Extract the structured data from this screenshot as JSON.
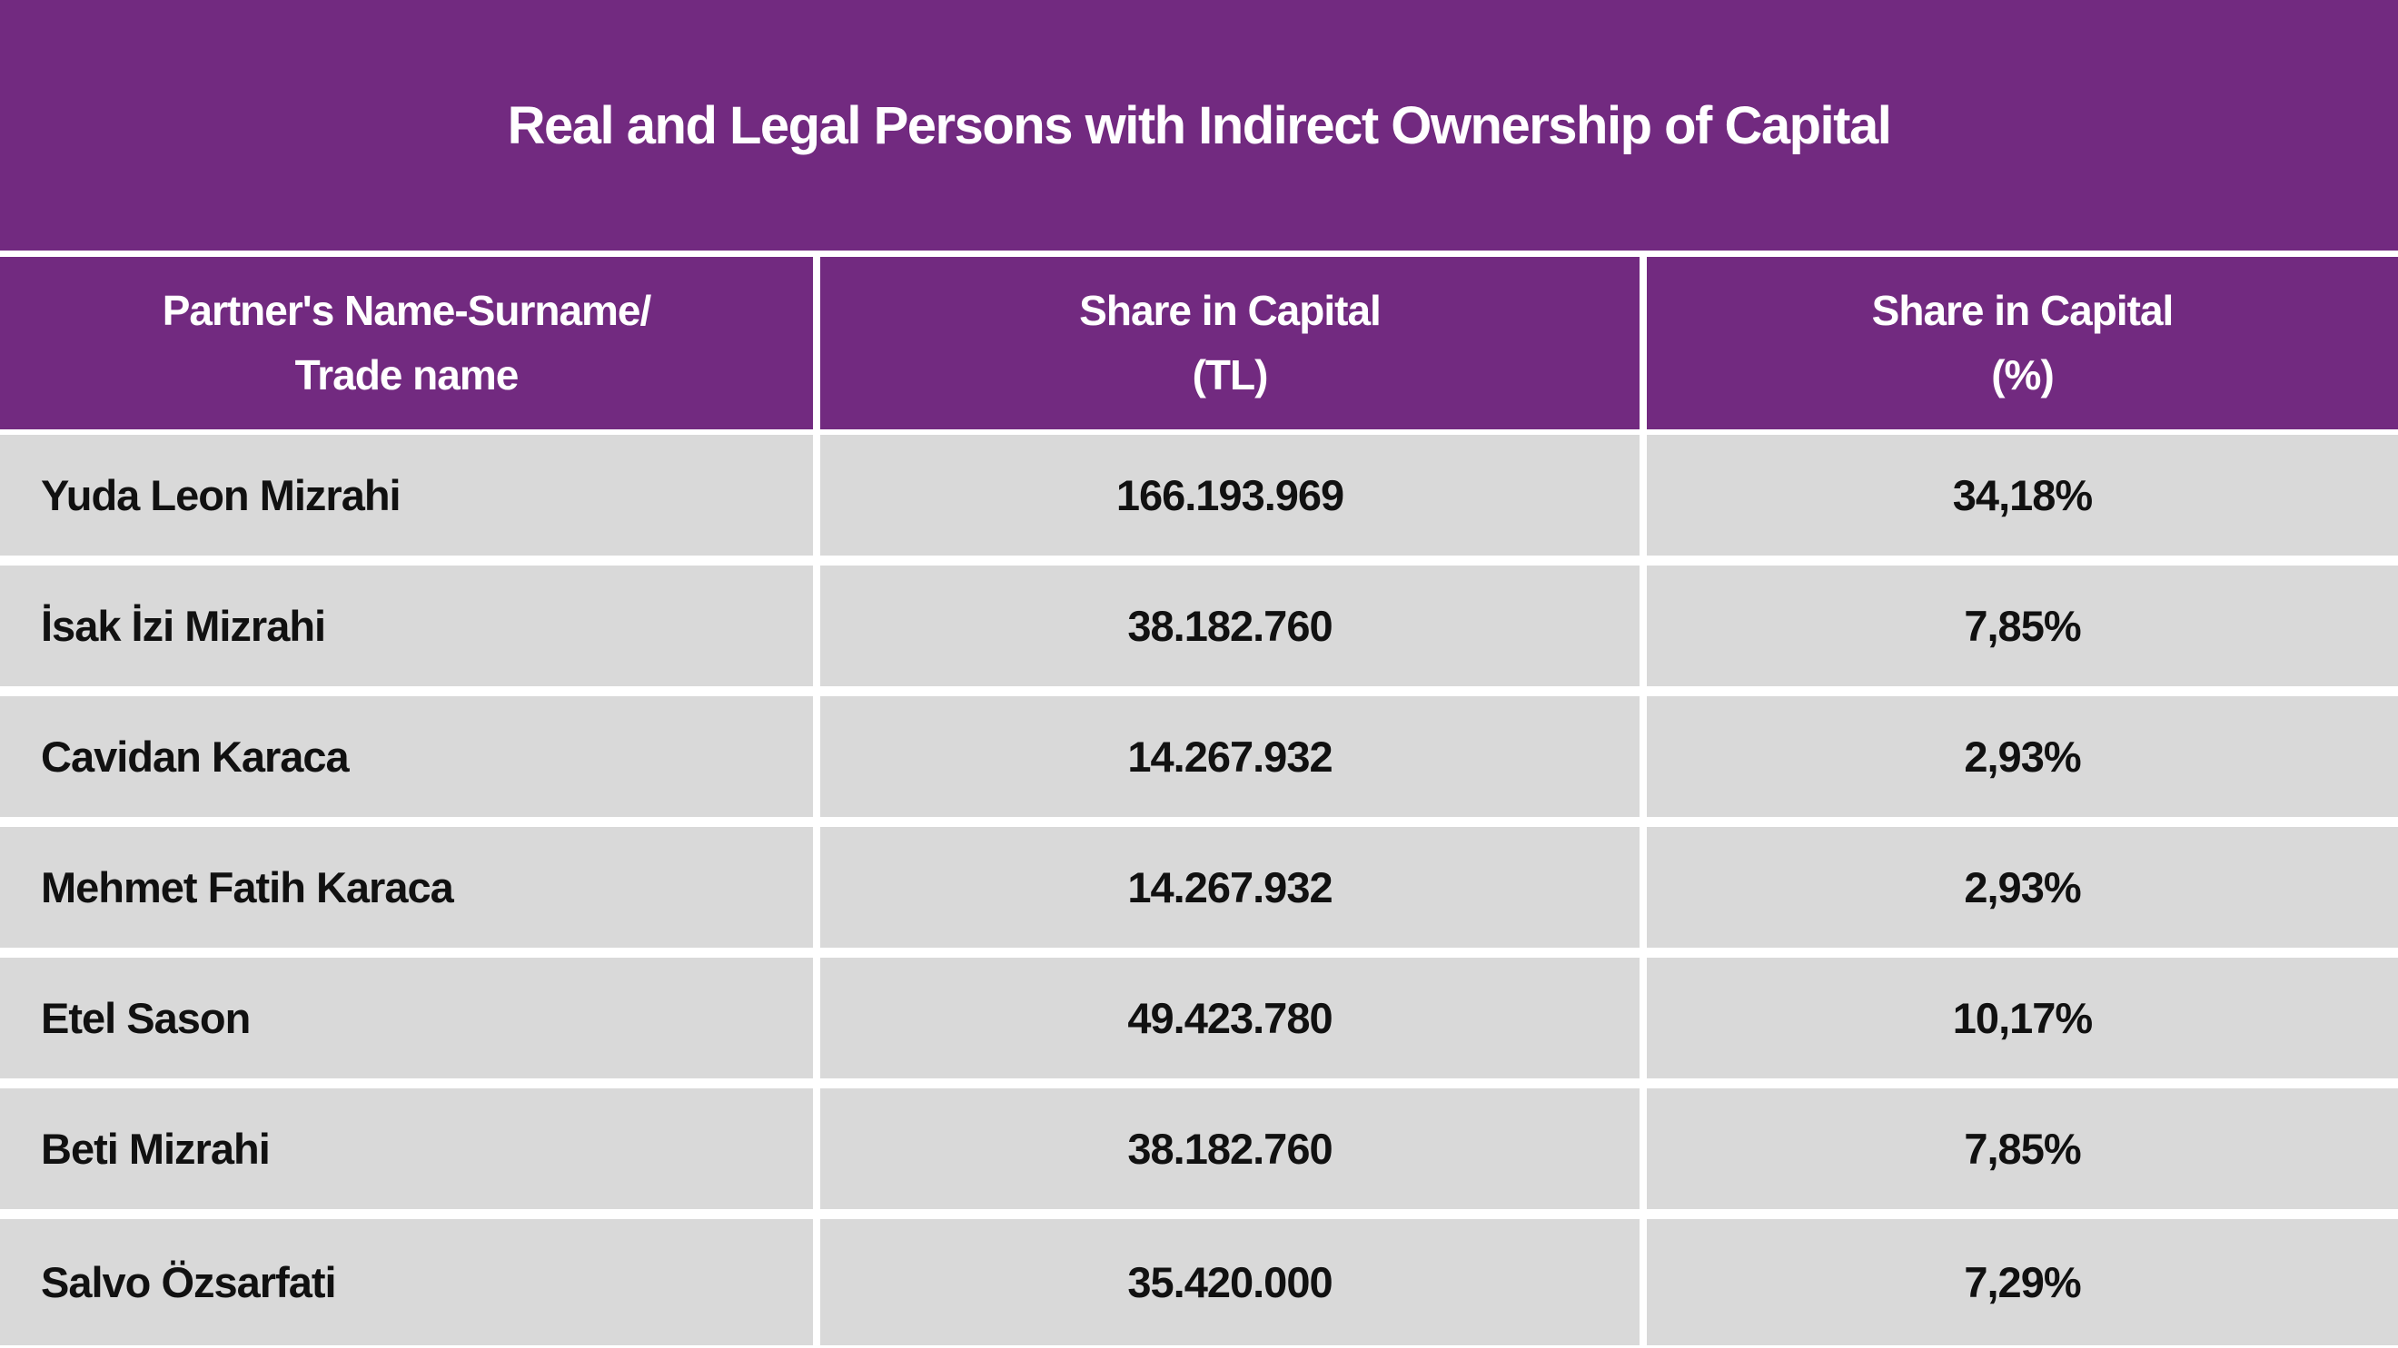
{
  "title": "Real and Legal Persons with Indirect Ownership of Capital",
  "colors": {
    "header_purple": "#722A80",
    "row_gray": "#D9D9D9",
    "divider_white": "#FFFFFF",
    "header_text": "#FFFFFF",
    "cell_text": "#111111"
  },
  "table": {
    "columns": [
      {
        "line1": "Partner's Name-Surname/",
        "line2": "Trade name"
      },
      {
        "line1": "Share in Capital",
        "line2": "(TL)"
      },
      {
        "line1": "Share in Capital",
        "line2": "(%)"
      }
    ],
    "rows": [
      {
        "name": "Yuda Leon Mizrahi",
        "share_tl": "166.193.969",
        "share_pct": "34,18%"
      },
      {
        "name": "İsak İzi Mizrahi",
        "share_tl": "38.182.760",
        "share_pct": "7,85%"
      },
      {
        "name": "Cavidan Karaca",
        "share_tl": "14.267.932",
        "share_pct": "2,93%"
      },
      {
        "name": "Mehmet Fatih Karaca",
        "share_tl": "14.267.932",
        "share_pct": "2,93%"
      },
      {
        "name": "Etel Sason",
        "share_tl": "49.423.780",
        "share_pct": "10,17%"
      },
      {
        "name": "Beti Mizrahi",
        "share_tl": "38.182.760",
        "share_pct": "7,85%"
      },
      {
        "name": "Salvo Özsarfati",
        "share_tl": "35.420.000",
        "share_pct": "7,29%"
      }
    ]
  }
}
